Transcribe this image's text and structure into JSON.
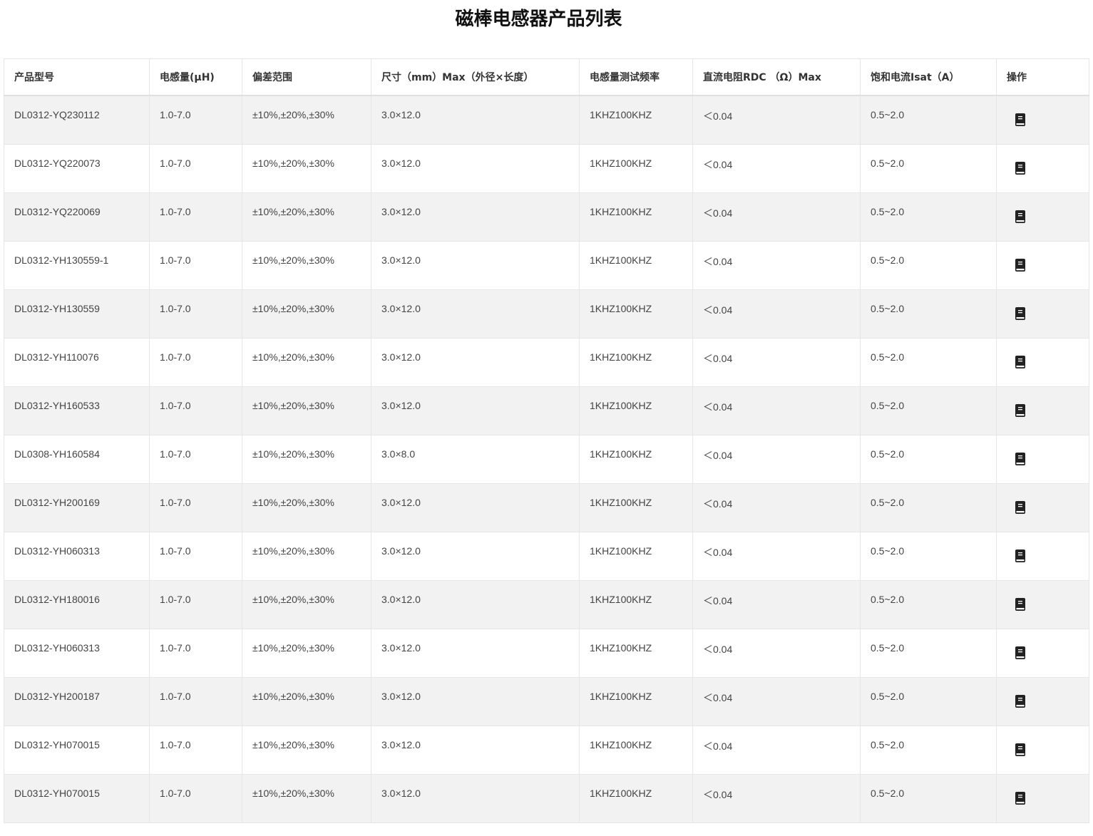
{
  "title": "磁棒电感器产品列表",
  "columns": [
    "产品型号",
    "电感量(μH)",
    "偏差范围",
    "尺寸（mm）Max（外径×长度）",
    "电感量测试频率",
    "直流电阻RDC （Ω）Max",
    "饱和电流Isat（A）",
    "操作"
  ],
  "rows": [
    [
      "DL0312-YQ230112",
      "1.0-7.0",
      "±10%,±20%,±30%",
      "3.0×12.0",
      "1KHZ100KHZ",
      "＜0.04",
      "0.5~2.0"
    ],
    [
      "DL0312-YQ220073",
      "1.0-7.0",
      "±10%,±20%,±30%",
      "3.0×12.0",
      "1KHZ100KHZ",
      "＜0.04",
      "0.5~2.0"
    ],
    [
      "DL0312-YQ220069",
      "1.0-7.0",
      "±10%,±20%,±30%",
      "3.0×12.0",
      "1KHZ100KHZ",
      "＜0.04",
      "0.5~2.0"
    ],
    [
      "DL0312-YH130559-1",
      "1.0-7.0",
      "±10%,±20%,±30%",
      "3.0×12.0",
      "1KHZ100KHZ",
      "＜0.04",
      "0.5~2.0"
    ],
    [
      "DL0312-YH130559",
      "1.0-7.0",
      "±10%,±20%,±30%",
      "3.0×12.0",
      "1KHZ100KHZ",
      "＜0.04",
      "0.5~2.0"
    ],
    [
      "DL0312-YH110076",
      "1.0-7.0",
      "±10%,±20%,±30%",
      "3.0×12.0",
      "1KHZ100KHZ",
      "＜0.04",
      "0.5~2.0"
    ],
    [
      "DL0312-YH160533",
      "1.0-7.0",
      "±10%,±20%,±30%",
      "3.0×12.0",
      "1KHZ100KHZ",
      "＜0.04",
      "0.5~2.0"
    ],
    [
      "DL0308-YH160584",
      "1.0-7.0",
      "±10%,±20%,±30%",
      "3.0×8.0",
      "1KHZ100KHZ",
      "＜0.04",
      "0.5~2.0"
    ],
    [
      "DL0312-YH200169",
      "1.0-7.0",
      "±10%,±20%,±30%",
      "3.0×12.0",
      "1KHZ100KHZ",
      "＜0.04",
      "0.5~2.0"
    ],
    [
      "DL0312-YH060313",
      "1.0-7.0",
      "±10%,±20%,±30%",
      "3.0×12.0",
      "1KHZ100KHZ",
      "＜0.04",
      "0.5~2.0"
    ],
    [
      "DL0312-YH180016",
      "1.0-7.0",
      "±10%,±20%,±30%",
      "3.0×12.0",
      "1KHZ100KHZ",
      "＜0.04",
      "0.5~2.0"
    ],
    [
      "DL0312-YH060313",
      "1.0-7.0",
      "±10%,±20%,±30%",
      "3.0×12.0",
      "1KHZ100KHZ",
      "＜0.04",
      "0.5~2.0"
    ],
    [
      "DL0312-YH200187",
      "1.0-7.0",
      "±10%,±20%,±30%",
      "3.0×12.0",
      "1KHZ100KHZ",
      "＜0.04",
      "0.5~2.0"
    ],
    [
      "DL0312-YH070015",
      "1.0-7.0",
      "±10%,±20%,±30%",
      "3.0×12.0",
      "1KHZ100KHZ",
      "＜0.04",
      "0.5~2.0"
    ],
    [
      "DL0312-YH070015",
      "1.0-7.0",
      "±10%,±20%,±30%",
      "3.0×12.0",
      "1KHZ100KHZ",
      "＜0.04",
      "0.5~2.0"
    ]
  ],
  "action_icon": "book-icon"
}
